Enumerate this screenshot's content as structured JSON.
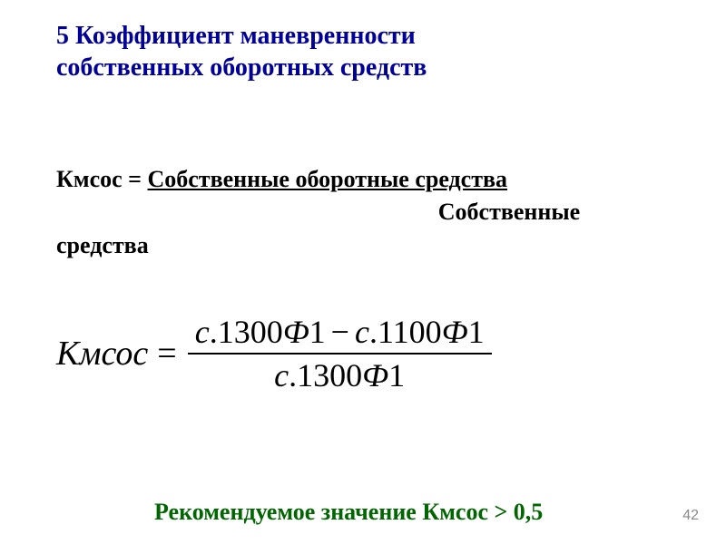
{
  "title": {
    "line1": "5 Коэффициент маневренности",
    "line2": "собственных оборотных средств",
    "color": "#000099",
    "fontsize": 28
  },
  "definition": {
    "lhs": "Кмсос ",
    "eq": "= ",
    "rhs_underlined": "Собственные оборотные средства",
    "denom_line1": "Собственные",
    "denom_line2": "средства",
    "color": "#000000",
    "fontsize": 26
  },
  "formula": {
    "lhs": "Кмсос",
    "numerator": {
      "t1": "с",
      "n1": ".1300",
      "t2": "Ф",
      "n2": "1",
      "minus": "−",
      "t3": "с",
      "n3": ".1100",
      "t4": "Ф",
      "n4": "1"
    },
    "denominator": {
      "t1": "с",
      "n1": ".1300",
      "t2": "Ф",
      "n2": "1"
    },
    "color": "#000000",
    "fontsize": 38
  },
  "recommendation": {
    "text": "Рекомендуемое значение  Кмсос > 0,5",
    "color": "#006600",
    "fontsize": 26
  },
  "page_number": "42",
  "background_color": "#ffffff"
}
